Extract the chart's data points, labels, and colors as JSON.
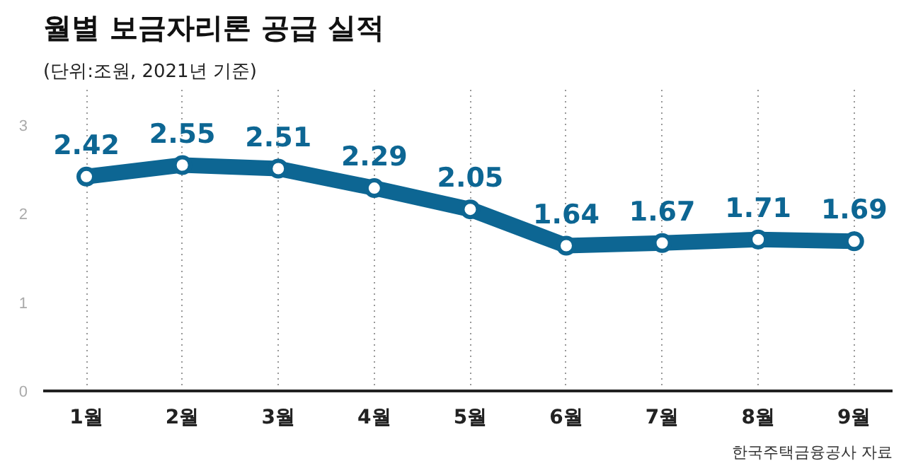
{
  "chart_data": {
    "type": "line",
    "title": "월별 보금자리론 공급 실적",
    "subtitle": "(단위:조원, 2021년 기준)",
    "categories": [
      "1월",
      "2월",
      "3월",
      "4월",
      "5월",
      "6월",
      "7월",
      "8월",
      "9월"
    ],
    "series": [
      {
        "color": "#0d6693",
        "values": [
          2.42,
          2.55,
          2.51,
          2.29,
          2.05,
          1.64,
          1.67,
          1.71,
          1.69
        ]
      }
    ],
    "ylim": [
      0,
      3.4
    ],
    "yticks": [
      0,
      1,
      2,
      3
    ],
    "grid": "x",
    "marker": "circle",
    "line_style": "solid",
    "data_labels": true,
    "annotations": [
      "한국주택금융공사 자료"
    ]
  }
}
